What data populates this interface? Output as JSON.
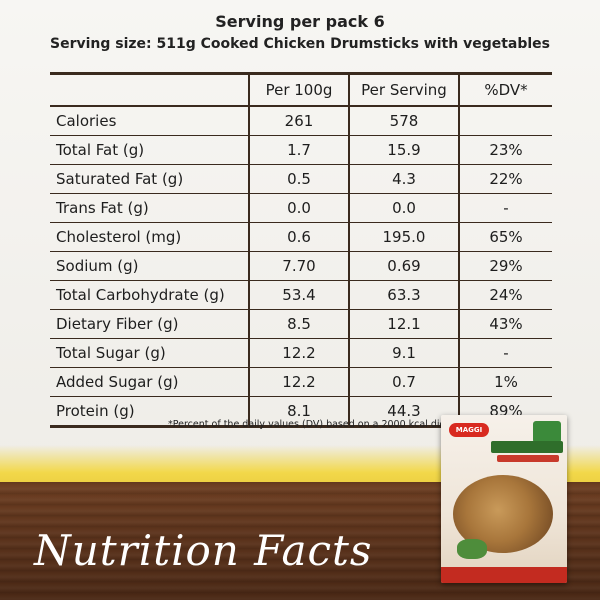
{
  "header": {
    "title": "Serving per pack 6",
    "subtitle": "Serving size: 511g Cooked Chicken Drumsticks with vegetables"
  },
  "table": {
    "columns": [
      "",
      "Per 100g",
      "Per Serving",
      "%DV*"
    ],
    "rows": [
      {
        "name": "Calories",
        "per100g": "261",
        "perServing": "578",
        "dv": ""
      },
      {
        "name": "Total Fat (g)",
        "per100g": "1.7",
        "perServing": "15.9",
        "dv": "23%"
      },
      {
        "name": "Saturated Fat (g)",
        "per100g": "0.5",
        "perServing": "4.3",
        "dv": "22%"
      },
      {
        "name": "Trans Fat (g)",
        "per100g": "0.0",
        "perServing": "0.0",
        "dv": "-"
      },
      {
        "name": "Cholesterol (mg)",
        "per100g": "0.6",
        "perServing": "195.0",
        "dv": "65%"
      },
      {
        "name": "Sodium (g)",
        "per100g": "7.70",
        "perServing": "0.69",
        "dv": "29%"
      },
      {
        "name": "Total Carbohydrate (g)",
        "per100g": "53.4",
        "perServing": "63.3",
        "dv": "24%"
      },
      {
        "name": "Dietary Fiber (g)",
        "per100g": "8.5",
        "perServing": "12.1",
        "dv": "43%"
      },
      {
        "name": "Total Sugar (g)",
        "per100g": "12.2",
        "perServing": "9.1",
        "dv": "-"
      },
      {
        "name": "Added Sugar (g)",
        "per100g": "12.2",
        "perServing": "0.7",
        "dv": "1%"
      },
      {
        "name": "Protein (g)",
        "per100g": "8.1",
        "perServing": "44.3",
        "dv": "89%"
      }
    ]
  },
  "footnote": "*Percent of the daily values (DV) based on a 2000 kcal diet.",
  "banner_title": "Nutrition Facts",
  "package": {
    "brand": "MAGGI"
  },
  "colors": {
    "wood": "#5a321b",
    "accent_yellow": "#f2d84a",
    "rule": "#3a2a1e",
    "brand_red": "#d82a20"
  }
}
